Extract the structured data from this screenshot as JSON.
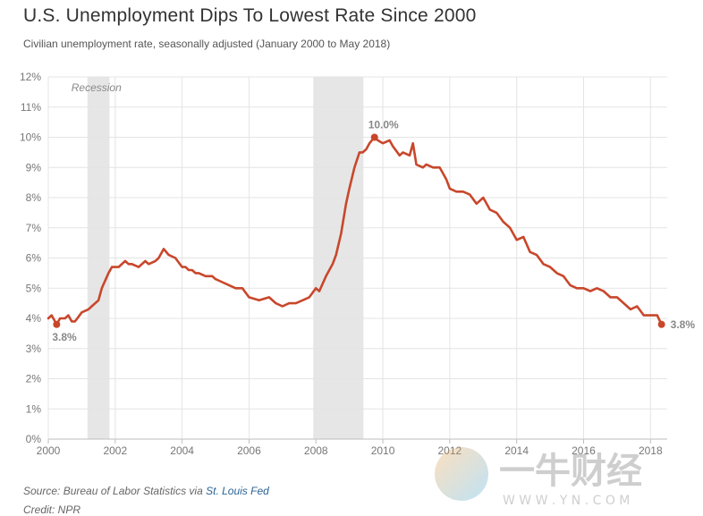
{
  "header": {
    "title": "U.S. Unemployment Dips To Lowest Rate Since 2000",
    "subtitle": "Civilian unemployment rate, seasonally adjusted (January 2000 to May 2018)"
  },
  "footer": {
    "source_prefix": "Source: Bureau of Labor Statistics via ",
    "source_link": "St. Louis Fed",
    "credit": "Credit: NPR"
  },
  "watermark": {
    "text": "一牛财经",
    "url_text": "W W W . Y N . C O M"
  },
  "colors": {
    "line": "#c8472b",
    "recession": "#e6e6e6",
    "grid": "#e4e4e4",
    "label": "#888888"
  },
  "chart_data": {
    "type": "line",
    "title": "U.S. Unemployment Dips To Lowest Rate Since 2000",
    "subtitle": "Civilian unemployment rate, seasonally adjusted (January 2000 to May 2018)",
    "xlabel": "",
    "ylabel": "",
    "xlim": [
      2000,
      2018.5
    ],
    "ylim": [
      0,
      12
    ],
    "x_ticks": [
      2000,
      2002,
      2004,
      2006,
      2008,
      2010,
      2012,
      2014,
      2016,
      2018
    ],
    "x_tick_labels": [
      "2000",
      "2002",
      "2004",
      "2006",
      "2008",
      "2010",
      "2012",
      "2014",
      "2016",
      "2018"
    ],
    "y_ticks": [
      0,
      1,
      2,
      3,
      4,
      5,
      6,
      7,
      8,
      9,
      10,
      11,
      12
    ],
    "y_tick_labels": [
      "0%",
      "1%",
      "2%",
      "3%",
      "4%",
      "5%",
      "6%",
      "7%",
      "8%",
      "9%",
      "10%",
      "11%",
      "12%"
    ],
    "grid": true,
    "recessions": [
      {
        "start": 2001.17,
        "end": 2001.83
      },
      {
        "start": 2007.92,
        "end": 2009.42
      }
    ],
    "recession_label": "Recession",
    "series": [
      {
        "name": "Unemployment rate",
        "x": [
          2000.0,
          2000.1,
          2000.2,
          2000.25,
          2000.35,
          2000.5,
          2000.6,
          2000.7,
          2000.8,
          2001.0,
          2001.2,
          2001.3,
          2001.5,
          2001.6,
          2001.8,
          2001.9,
          2002.0,
          2002.1,
          2002.3,
          2002.4,
          2002.5,
          2002.7,
          2002.9,
          2003.0,
          2003.2,
          2003.3,
          2003.45,
          2003.6,
          2003.8,
          2004.0,
          2004.1,
          2004.2,
          2004.3,
          2004.4,
          2004.5,
          2004.7,
          2004.9,
          2005.0,
          2005.2,
          2005.4,
          2005.6,
          2005.8,
          2006.0,
          2006.3,
          2006.6,
          2006.8,
          2007.0,
          2007.2,
          2007.4,
          2007.6,
          2007.8,
          2008.0,
          2008.1,
          2008.3,
          2008.4,
          2008.5,
          2008.6,
          2008.75,
          2008.9,
          2009.0,
          2009.15,
          2009.3,
          2009.4,
          2009.5,
          2009.6,
          2009.75,
          2009.85,
          2010.0,
          2010.2,
          2010.3,
          2010.5,
          2010.6,
          2010.8,
          2010.9,
          2011.0,
          2011.2,
          2011.3,
          2011.5,
          2011.7,
          2011.9,
          2012.0,
          2012.2,
          2012.4,
          2012.6,
          2012.8,
          2013.0,
          2013.2,
          2013.4,
          2013.6,
          2013.8,
          2014.0,
          2014.2,
          2014.4,
          2014.6,
          2014.8,
          2015.0,
          2015.2,
          2015.4,
          2015.6,
          2015.8,
          2016.0,
          2016.2,
          2016.4,
          2016.6,
          2016.8,
          2017.0,
          2017.2,
          2017.4,
          2017.6,
          2017.8,
          2018.0,
          2018.2,
          2018.33
        ],
        "values": [
          4.0,
          4.1,
          3.9,
          3.8,
          4.0,
          4.0,
          4.1,
          3.9,
          3.9,
          4.2,
          4.3,
          4.4,
          4.6,
          5.0,
          5.5,
          5.7,
          5.7,
          5.7,
          5.9,
          5.8,
          5.8,
          5.7,
          5.9,
          5.8,
          5.9,
          6.0,
          6.3,
          6.1,
          6.0,
          5.7,
          5.7,
          5.6,
          5.6,
          5.5,
          5.5,
          5.4,
          5.4,
          5.3,
          5.2,
          5.1,
          5.0,
          5.0,
          4.7,
          4.6,
          4.7,
          4.5,
          4.4,
          4.5,
          4.5,
          4.6,
          4.7,
          5.0,
          4.9,
          5.4,
          5.6,
          5.8,
          6.1,
          6.8,
          7.8,
          8.3,
          9.0,
          9.5,
          9.5,
          9.6,
          9.8,
          10.0,
          9.9,
          9.8,
          9.9,
          9.7,
          9.4,
          9.5,
          9.4,
          9.8,
          9.1,
          9.0,
          9.1,
          9.0,
          9.0,
          8.6,
          8.3,
          8.2,
          8.2,
          8.1,
          7.8,
          8.0,
          7.6,
          7.5,
          7.2,
          7.0,
          6.6,
          6.7,
          6.2,
          6.1,
          5.8,
          5.7,
          5.5,
          5.4,
          5.1,
          5.0,
          5.0,
          4.9,
          5.0,
          4.9,
          4.7,
          4.7,
          4.5,
          4.3,
          4.4,
          4.1,
          4.1,
          4.1,
          3.8
        ]
      }
    ],
    "annotations": [
      {
        "x": 2000.25,
        "y": 3.8,
        "label": "3.8%"
      },
      {
        "x": 2009.75,
        "y": 10.0,
        "label": "10.0%"
      },
      {
        "x": 2018.33,
        "y": 3.8,
        "label": "3.8%"
      }
    ]
  }
}
